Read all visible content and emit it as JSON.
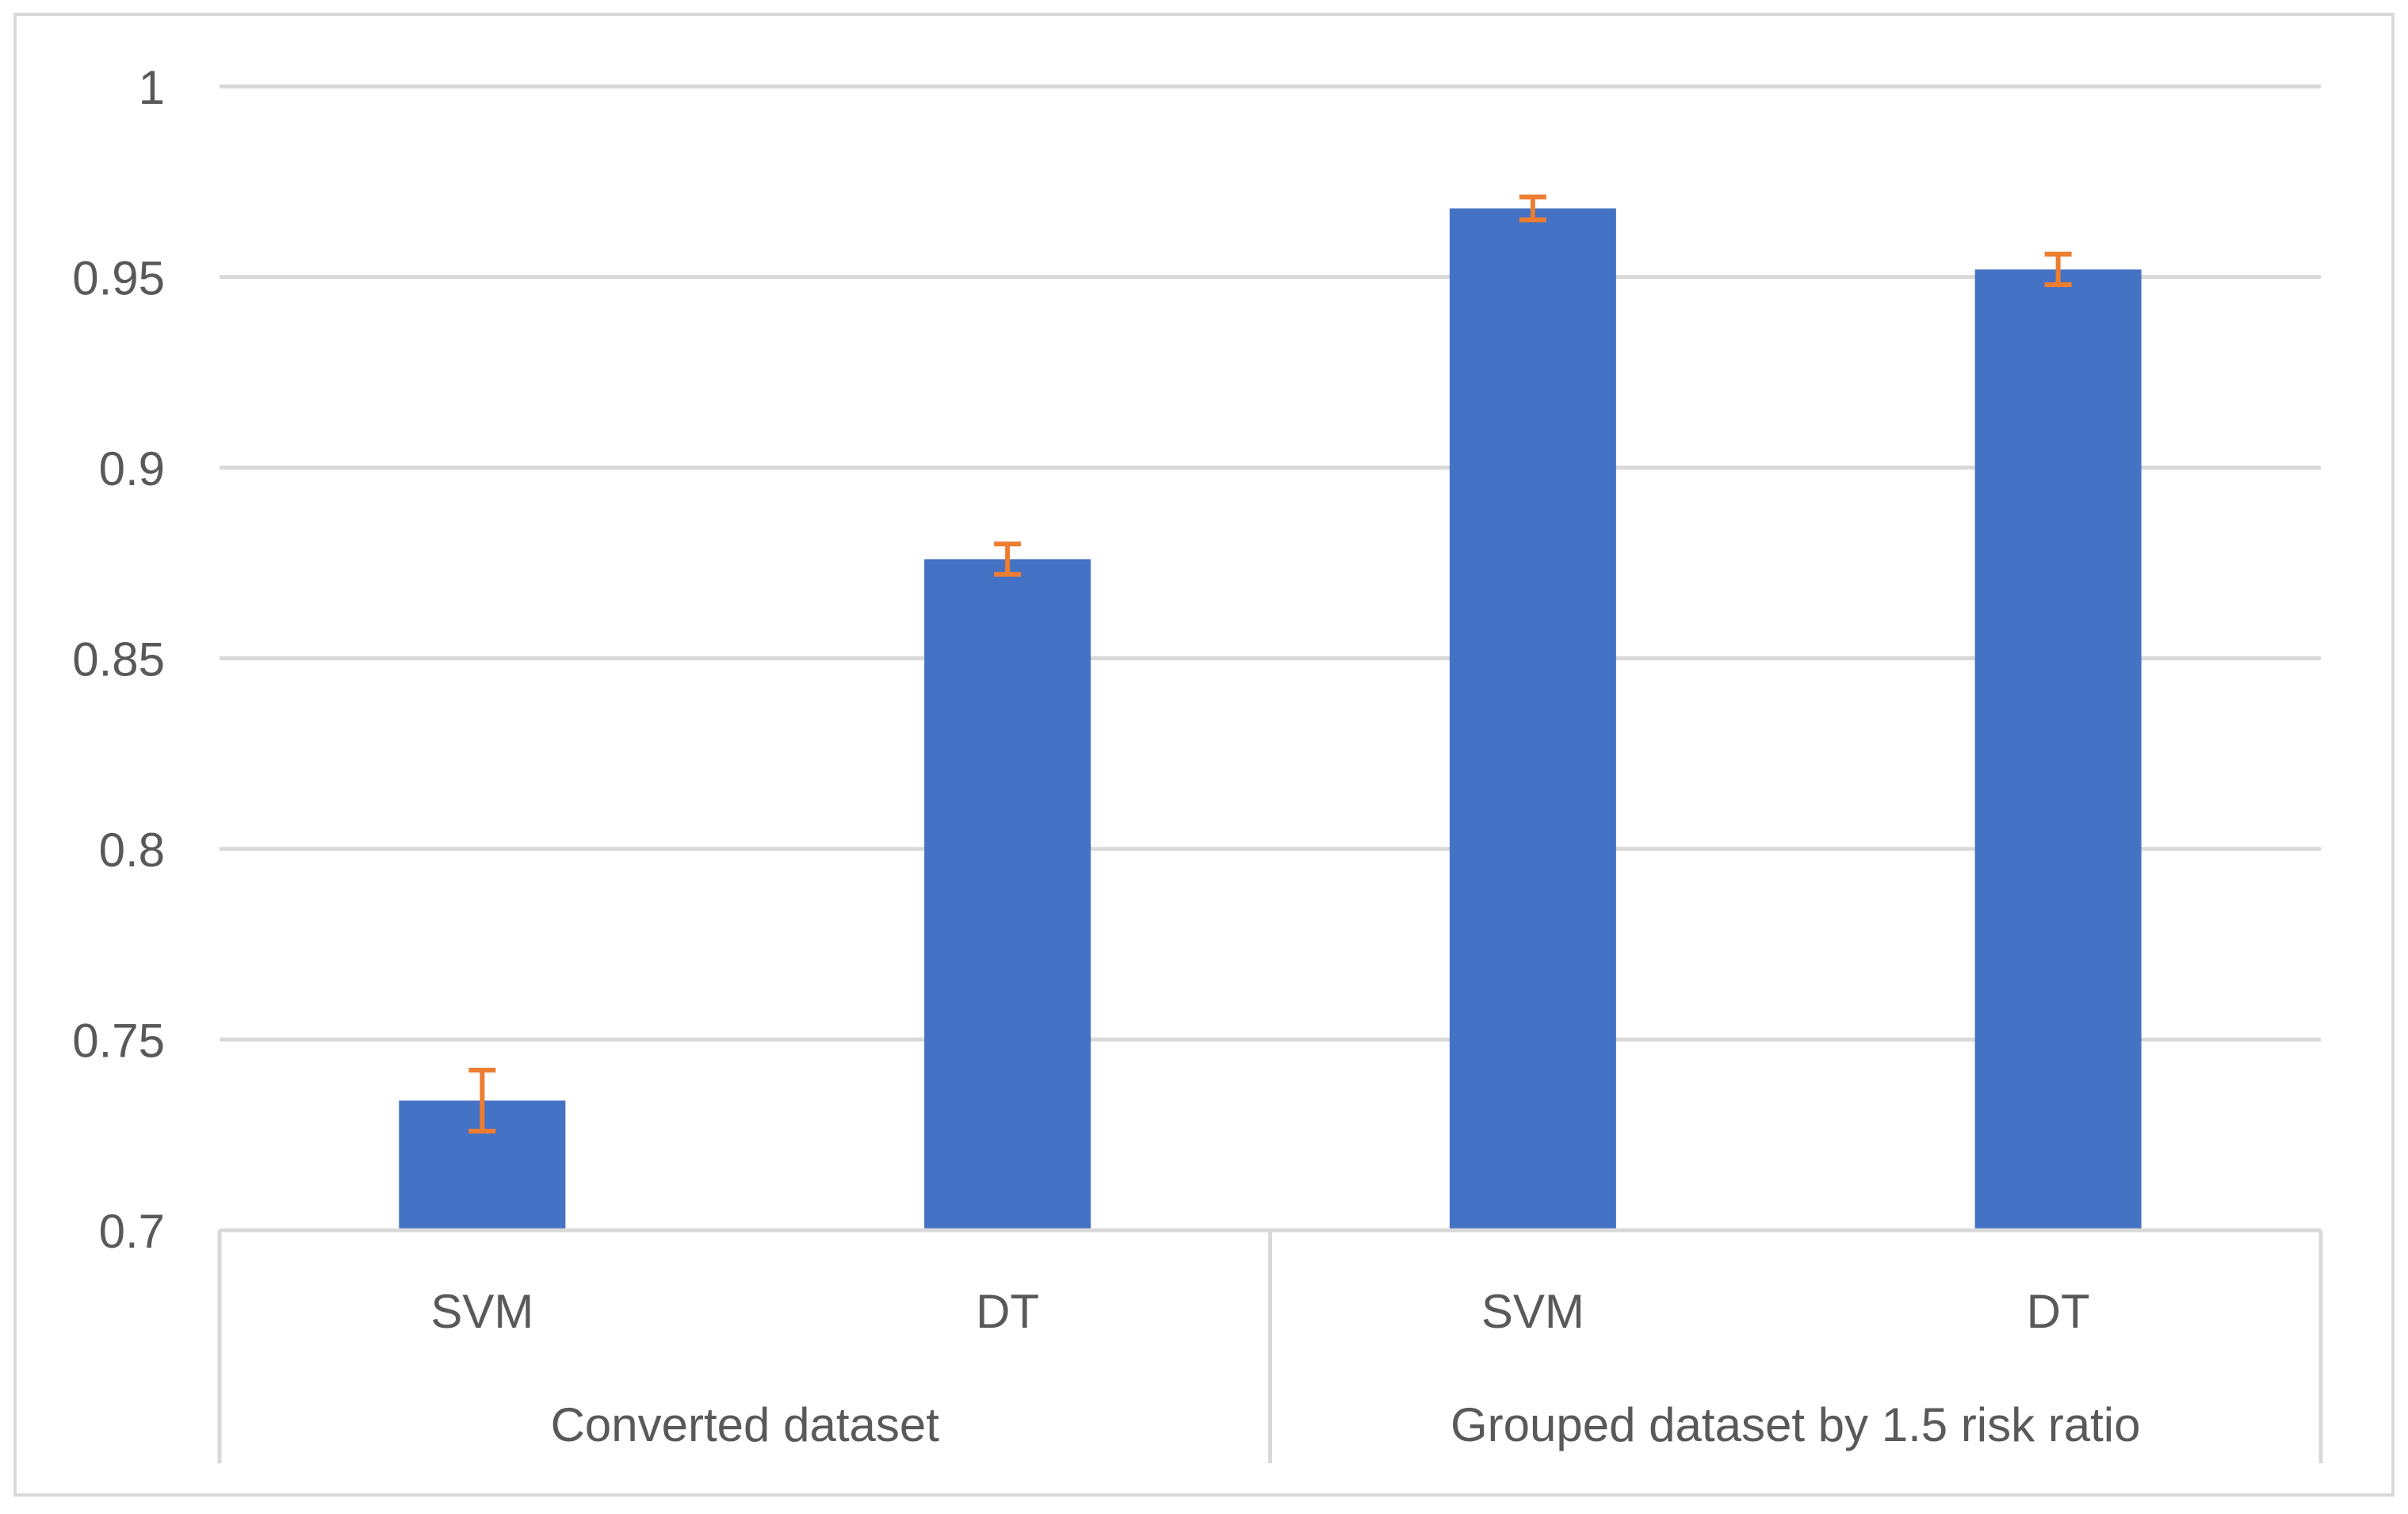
{
  "chart_data": {
    "type": "bar",
    "title": "",
    "xlabel": "",
    "ylabel": "",
    "ylim": [
      0.7,
      1.0
    ],
    "yticks": [
      0.7,
      0.75,
      0.8,
      0.85,
      0.9,
      0.95,
      1.0
    ],
    "ytick_labels": [
      "0.7",
      "0.75",
      "0.8",
      "0.85",
      "0.9",
      "0.95",
      "1"
    ],
    "grid": true,
    "legend": "none",
    "groups": [
      {
        "label": "Converted dataset",
        "categories": [
          "SVM",
          "DT"
        ]
      },
      {
        "label": "Grouped dataset by 1.5 risk ratio",
        "categories": [
          "SVM",
          "DT"
        ]
      }
    ],
    "categories": [
      "SVM",
      "DT",
      "SVM",
      "DT"
    ],
    "values": [
      0.734,
      0.876,
      0.968,
      0.952
    ],
    "error_low": [
      0.726,
      0.872,
      0.965,
      0.948
    ],
    "error_high": [
      0.742,
      0.88,
      0.971,
      0.956
    ],
    "colors": {
      "bar": "#4472C4",
      "error_bar": "#ED7D31",
      "grid": "#D9D9D9",
      "axis_text": "#595959",
      "border": "#D9D9D9"
    }
  }
}
